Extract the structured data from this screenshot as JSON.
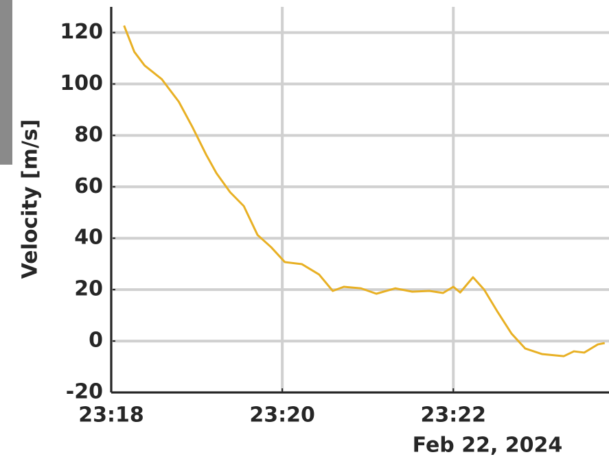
{
  "chart_data": {
    "type": "line",
    "y_label": "Velocity [m/s]",
    "date_label": "Feb 22, 2024",
    "x": [
      1398.15,
      1398.27,
      1398.39,
      1398.59,
      1398.79,
      1398.95,
      1399.11,
      1399.23,
      1399.39,
      1399.55,
      1399.71,
      1399.87,
      1400.03,
      1400.23,
      1400.43,
      1400.59,
      1400.72,
      1400.92,
      1401.1,
      1401.32,
      1401.52,
      1401.72,
      1401.88,
      1402.0,
      1402.08,
      1402.23,
      1402.36,
      1402.52,
      1402.68,
      1402.84,
      1403.04,
      1403.29,
      1403.41,
      1403.53,
      1403.69,
      1403.77
    ],
    "series": [
      {
        "color": "#e8b024",
        "values": [
          122.7,
          112.5,
          107.2,
          101.9,
          93.1,
          83.2,
          72.5,
          65.3,
          57.9,
          52.5,
          41.3,
          36.5,
          30.7,
          29.9,
          25.9,
          19.5,
          21.1,
          20.5,
          18.4,
          20.5,
          19.2,
          19.5,
          18.7,
          21.1,
          18.9,
          24.8,
          20.0,
          11.2,
          2.9,
          -2.9,
          -5.1,
          -5.9,
          -4.0,
          -4.5,
          -1.3,
          -0.8
        ]
      }
    ],
    "xlim": [
      1398,
      1403.82
    ],
    "xticks": [
      {
        "value": 1398,
        "label": "23:18"
      },
      {
        "value": 1400,
        "label": "23:20"
      },
      {
        "value": 1402,
        "label": "23:22"
      }
    ],
    "ylim": [
      -20,
      130
    ],
    "yticks": [
      -20,
      0,
      20,
      40,
      60,
      80,
      100,
      120
    ],
    "grid": true
  }
}
